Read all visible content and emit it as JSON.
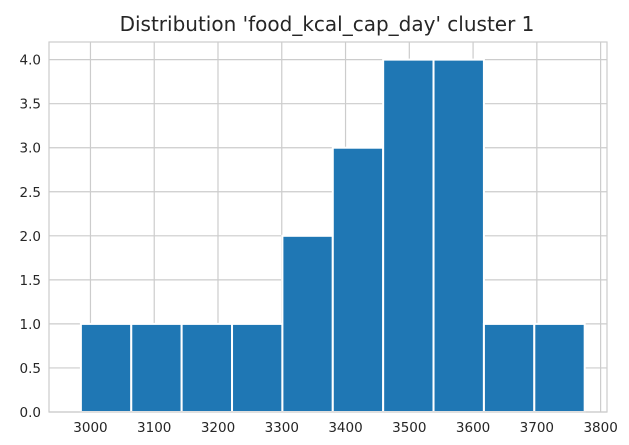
{
  "chart_data": {
    "type": "histogram",
    "title": "Distribution 'food_kcal_cap_day' cluster 1",
    "xlabel": "",
    "ylabel": "",
    "xlim": [
      2935,
      3810
    ],
    "ylim": [
      0,
      4.2
    ],
    "grid": true,
    "bins": [
      {
        "start": 2985,
        "end": 3064,
        "count": 1
      },
      {
        "start": 3064,
        "end": 3143,
        "count": 1
      },
      {
        "start": 3143,
        "end": 3222,
        "count": 1
      },
      {
        "start": 3222,
        "end": 3301,
        "count": 1
      },
      {
        "start": 3301,
        "end": 3380,
        "count": 2
      },
      {
        "start": 3380,
        "end": 3459,
        "count": 3
      },
      {
        "start": 3459,
        "end": 3538,
        "count": 4
      },
      {
        "start": 3538,
        "end": 3617,
        "count": 4
      },
      {
        "start": 3617,
        "end": 3696,
        "count": 1
      },
      {
        "start": 3696,
        "end": 3775,
        "count": 1
      }
    ],
    "x_ticks": [
      3000,
      3100,
      3200,
      3300,
      3400,
      3500,
      3600,
      3700,
      3800
    ],
    "y_ticks": [
      0.0,
      0.5,
      1.0,
      1.5,
      2.0,
      2.5,
      3.0,
      3.5,
      4.0
    ],
    "y_tick_labels": [
      "0.0",
      "0.5",
      "1.0",
      "1.5",
      "2.0",
      "2.5",
      "3.0",
      "3.5",
      "4.0"
    ],
    "colors": {
      "bar": "#1f77b4",
      "grid": "#cccccc",
      "background": "#ffffff"
    }
  }
}
